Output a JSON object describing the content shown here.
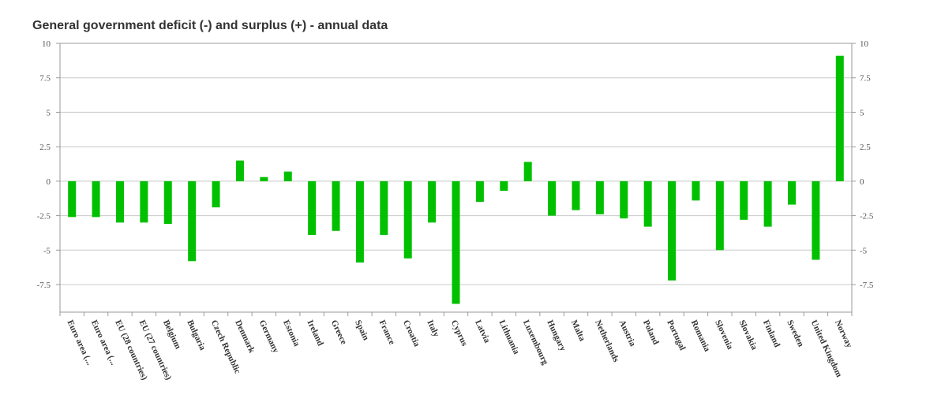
{
  "chart_data": {
    "type": "bar",
    "title": "General government deficit (-) and surplus (+) - annual data",
    "xlabel": "",
    "ylabel": "",
    "ylim": [
      -9.5,
      10
    ],
    "yticks": [
      10,
      7.5,
      5,
      2.5,
      0,
      -2.5,
      -5,
      -7.5
    ],
    "ytick_labels": [
      "10",
      "7.5",
      "5",
      "2.5",
      "0",
      "-2.5",
      "-5",
      "-7.5"
    ],
    "grid": true,
    "legend": "none",
    "bar_color": "#00c000",
    "categories": [
      "Euro area (...",
      "Euro area (...",
      "EU (28 countries)",
      "EU (27 countries)",
      "Belgium",
      "Bulgaria",
      "Czech Republic",
      "Denmark",
      "Germany",
      "Estonia",
      "Ireland",
      "Greece",
      "Spain",
      "France",
      "Croatia",
      "Italy",
      "Cyprus",
      "Latvia",
      "Lithuania",
      "Luxembourg",
      "Hungary",
      "Malta",
      "Netherlands",
      "Austria",
      "Poland",
      "Portugal",
      "Romania",
      "Slovenia",
      "Slovakia",
      "Finland",
      "Sweden",
      "United Kingdom",
      "Norway"
    ],
    "values": [
      -2.6,
      -2.6,
      -3.0,
      -3.0,
      -3.1,
      -5.8,
      -1.9,
      1.5,
      0.3,
      0.7,
      -3.9,
      -3.6,
      -5.9,
      -3.9,
      -5.6,
      -3.0,
      -8.9,
      -1.5,
      -0.7,
      1.4,
      -2.5,
      -2.1,
      -2.4,
      -2.7,
      -3.3,
      -7.2,
      -1.4,
      -5.0,
      -2.8,
      -3.3,
      -1.7,
      -5.7,
      9.1
    ]
  }
}
